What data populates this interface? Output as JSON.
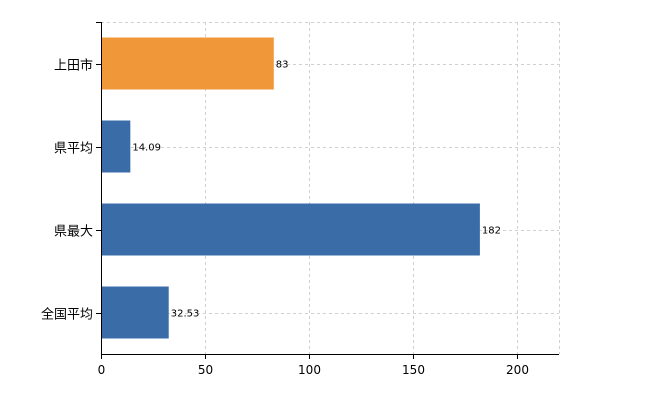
{
  "chart_data": {
    "type": "bar",
    "orientation": "horizontal",
    "title": "",
    "xlabel": "",
    "ylabel": "",
    "categories": [
      "上田市",
      "県平均",
      "県最大",
      "全国平均"
    ],
    "values": [
      83,
      14.09,
      182,
      32.53
    ],
    "value_labels": [
      "83",
      "14.09",
      "182",
      "32.53"
    ],
    "xlim": [
      0,
      220
    ],
    "x_ticks": [
      0,
      50,
      100,
      150,
      200
    ],
    "x_tick_labels": [
      "0",
      "50",
      "100",
      "150",
      "200"
    ],
    "grid": true,
    "legend": "none",
    "colors": {
      "highlight": "#f0973a",
      "default": "#3a6ca8"
    },
    "bar_colors": [
      "highlight",
      "default",
      "default",
      "default"
    ]
  }
}
